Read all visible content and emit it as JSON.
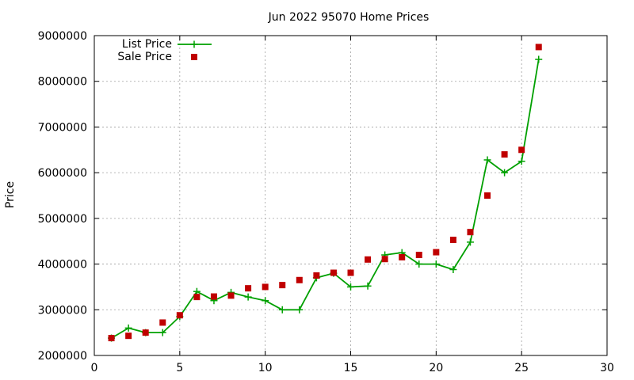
{
  "chart_data": {
    "type": "line",
    "title": "Jun 2022 95070 Home Prices",
    "xlabel": "",
    "ylabel": "Price",
    "xlim": [
      0,
      30
    ],
    "ylim": [
      2000000,
      9000000
    ],
    "xticks": [
      0,
      5,
      10,
      15,
      20,
      25,
      30
    ],
    "yticks": [
      2000000,
      3000000,
      4000000,
      5000000,
      6000000,
      7000000,
      8000000,
      9000000
    ],
    "grid": true,
    "legend_position": "top-left",
    "series": [
      {
        "name": "List Price",
        "style": "line-with-plus-markers",
        "color": "#00a000",
        "x": [
          1,
          2,
          3,
          4,
          5,
          6,
          7,
          8,
          9,
          10,
          11,
          12,
          13,
          14,
          15,
          16,
          17,
          18,
          19,
          20,
          21,
          22,
          23,
          24,
          25,
          26
        ],
        "y": [
          2380000,
          2600000,
          2500000,
          2500000,
          2850000,
          3400000,
          3200000,
          3380000,
          3280000,
          3200000,
          3000000,
          3000000,
          3700000,
          3800000,
          3500000,
          3520000,
          4200000,
          4250000,
          4000000,
          4000000,
          3880000,
          4480000,
          6280000,
          6000000,
          6250000,
          8480000
        ]
      },
      {
        "name": "Sale Price",
        "style": "square-points",
        "color": "#c00000",
        "x": [
          1,
          2,
          3,
          4,
          5,
          6,
          7,
          8,
          9,
          10,
          11,
          12,
          13,
          14,
          15,
          16,
          17,
          18,
          19,
          20,
          21,
          22,
          23,
          24,
          25,
          26
        ],
        "y": [
          2380000,
          2430000,
          2500000,
          2720000,
          2880000,
          3280000,
          3290000,
          3310000,
          3470000,
          3500000,
          3540000,
          3650000,
          3750000,
          3810000,
          3810000,
          4100000,
          4110000,
          4150000,
          4200000,
          4260000,
          4530000,
          4700000,
          5500000,
          6400000,
          6500000,
          8750000
        ]
      }
    ]
  }
}
